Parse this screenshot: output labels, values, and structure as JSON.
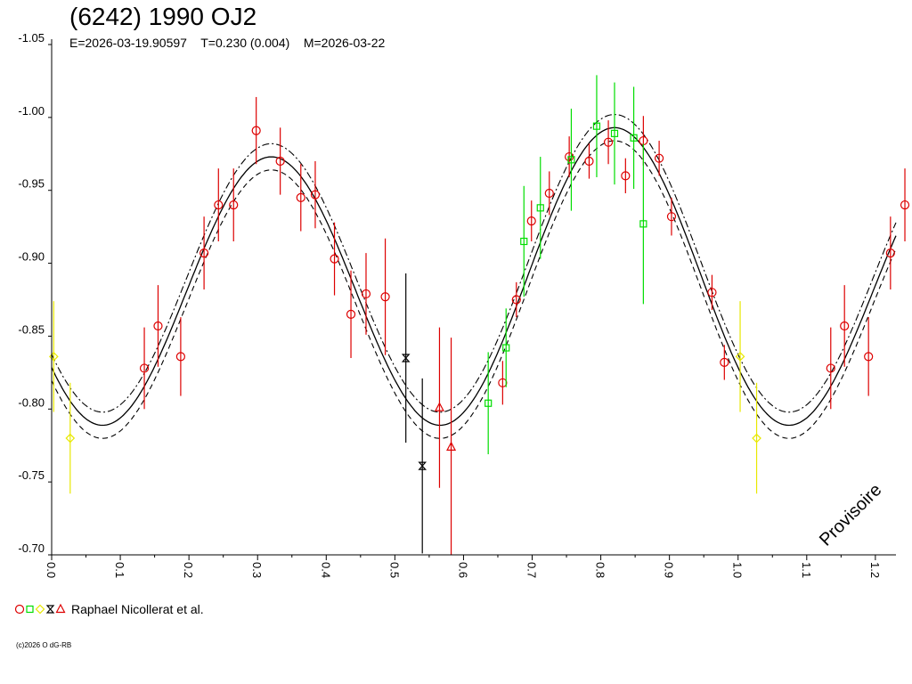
{
  "title": "(6242) 1990 OJ2",
  "subtitle": "E=2026-03-19.90597    T=0.230 (0.004)    M=2026-03-22",
  "watermark": "Provisoire",
  "legend": {
    "text": "Raphael Nicollerat et al."
  },
  "copyright": "(c)2026 O dG-RB",
  "colors": {
    "red": "#dd0000",
    "green": "#00dd00",
    "yellow": "#e8e800",
    "black": "#000000"
  },
  "chart_data": {
    "type": "scatter",
    "xlim": [
      0.0,
      1.23
    ],
    "ylim": [
      -1.05,
      -0.7
    ],
    "x_ticks": [
      "0.0",
      "0.1",
      "0.2",
      "0.3",
      "0.4",
      "0.5",
      "0.6",
      "0.7",
      "0.8",
      "0.9",
      "1.0",
      "1.1",
      "1.2"
    ],
    "y_ticks": [
      "-1.05",
      "-1.00",
      "-0.95",
      "-0.90",
      "-0.85",
      "-0.80",
      "-0.75",
      "-0.70"
    ],
    "y_inverted": true,
    "curve": {
      "offset": -0.886,
      "amplitude": -0.097,
      "second_amplitude": 0.01,
      "phase": 0.32,
      "band": 0.009
    },
    "series": [
      {
        "marker": "circle",
        "color": "red",
        "points": [
          [
            0.135,
            -0.828,
            0.028
          ],
          [
            0.155,
            -0.857,
            0.028
          ],
          [
            0.188,
            -0.836,
            0.027
          ],
          [
            0.222,
            -0.907,
            0.025
          ],
          [
            0.243,
            -0.94,
            0.025
          ],
          [
            0.265,
            -0.94,
            0.025
          ],
          [
            0.298,
            -0.991,
            0.023
          ],
          [
            0.333,
            -0.97,
            0.023
          ],
          [
            0.363,
            -0.945,
            0.023
          ],
          [
            0.384,
            -0.947,
            0.023
          ],
          [
            0.412,
            -0.903,
            0.025
          ],
          [
            0.436,
            -0.865,
            0.03
          ],
          [
            0.458,
            -0.879,
            0.028
          ],
          [
            0.486,
            -0.877,
            0.04
          ],
          [
            0.657,
            -0.818,
            0.015
          ],
          [
            0.677,
            -0.875,
            0.012
          ],
          [
            0.699,
            -0.929,
            0.014
          ],
          [
            0.725,
            -0.948,
            0.015
          ],
          [
            0.754,
            -0.973,
            0.014
          ],
          [
            0.783,
            -0.97,
            0.012
          ],
          [
            0.811,
            -0.983,
            0.015
          ],
          [
            0.836,
            -0.96,
            0.012
          ],
          [
            0.862,
            -0.984,
            0.017
          ],
          [
            0.885,
            -0.972,
            0.012
          ],
          [
            0.903,
            -0.932,
            0.013
          ],
          [
            0.962,
            -0.88,
            0.012
          ],
          [
            0.98,
            -0.832,
            0.012
          ],
          [
            1.135,
            -0.828,
            0.028
          ],
          [
            1.155,
            -0.857,
            0.028
          ],
          [
            1.19,
            -0.836,
            0.027
          ],
          [
            1.222,
            -0.907,
            0.025
          ],
          [
            1.243,
            -0.94,
            0.025
          ]
        ]
      },
      {
        "marker": "square",
        "color": "green",
        "points": [
          [
            0.636,
            -0.804,
            0.035
          ],
          [
            0.662,
            -0.842,
            0.027
          ],
          [
            0.688,
            -0.915,
            0.038
          ],
          [
            0.712,
            -0.938,
            0.035
          ],
          [
            0.757,
            -0.971,
            0.035
          ],
          [
            0.794,
            -0.994,
            0.035
          ],
          [
            0.82,
            -0.989,
            0.035
          ],
          [
            0.848,
            -0.986,
            0.035
          ],
          [
            0.862,
            -0.927,
            0.055
          ]
        ]
      },
      {
        "marker": "diamond",
        "color": "yellow",
        "points": [
          [
            0.003,
            -0.836,
            0.038
          ],
          [
            0.027,
            -0.78,
            0.038
          ],
          [
            1.003,
            -0.836,
            0.038
          ],
          [
            1.027,
            -0.78,
            0.038
          ]
        ]
      },
      {
        "marker": "hourglass",
        "color": "black",
        "points": [
          [
            0.516,
            -0.835,
            0.058
          ],
          [
            0.54,
            -0.761,
            0.06
          ]
        ]
      },
      {
        "marker": "triangle",
        "color": "red",
        "points": [
          [
            0.565,
            -0.801,
            0.055
          ],
          [
            0.582,
            -0.774,
            0.075
          ]
        ]
      }
    ]
  }
}
